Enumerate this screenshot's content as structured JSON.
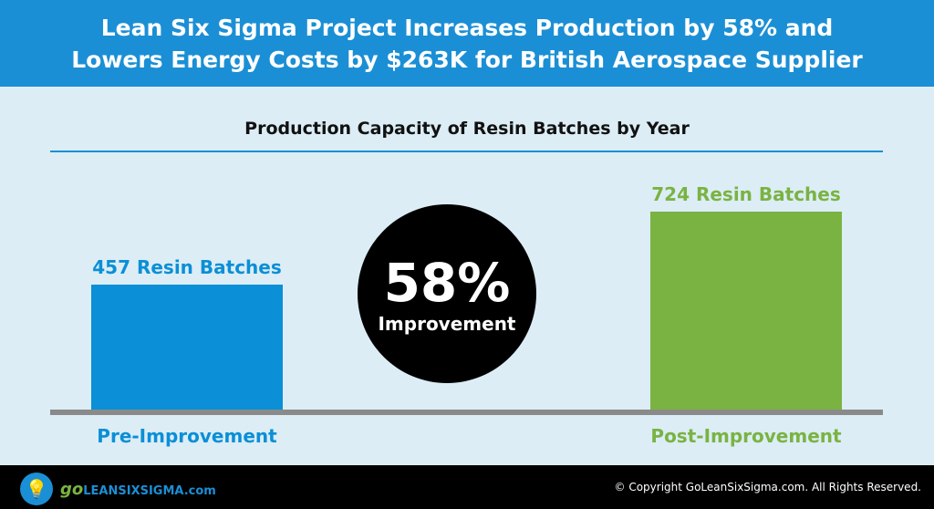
{
  "header": {
    "title_line1": "Lean Six Sigma Project Increases Production by 58% and",
    "title_line2": "Lowers Energy Costs by $263K for British Aerospace Supplier"
  },
  "chart_data": {
    "type": "bar",
    "title": "Production Capacity of Resin Batches by Year",
    "categories": [
      "Pre-Improvement",
      "Post-Improvement"
    ],
    "values": [
      457,
      724
    ],
    "data_labels": [
      "457 Resin Batches",
      "724 Resin Batches"
    ],
    "colors": [
      "#0b8fd6",
      "#7ab342"
    ],
    "annotation": {
      "value": "58%",
      "label": "Improvement"
    }
  },
  "footer": {
    "brand_go": "go",
    "brand_rest": "LEANSIXSIGMA.com",
    "copyright": "© Copyright GoLeanSixSigma.com. All Rights Reserved.",
    "logo_icon": "lightbulb-icon"
  }
}
